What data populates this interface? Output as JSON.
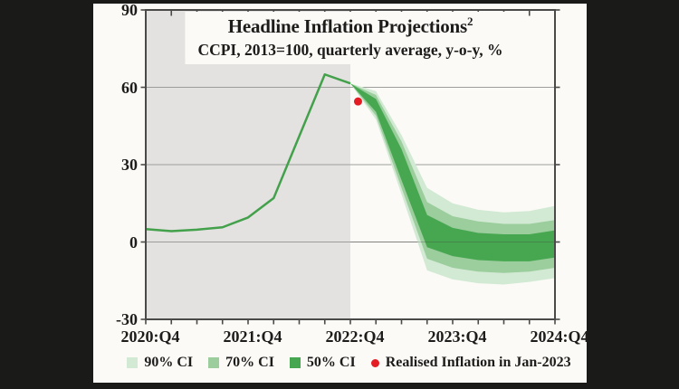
{
  "chart_data": {
    "type": "line",
    "subtype": "fan-chart-projection",
    "title": "Headline Inflation Projections",
    "title_superscript": "2",
    "subtitle": "CCPI, 2013=100, quarterly average, y-o-y, %",
    "ylim": [
      -30,
      90
    ],
    "y_tick_labels": [
      "90",
      "60",
      "30",
      "0",
      "-30"
    ],
    "y_tick_values": [
      90,
      60,
      30,
      0,
      -30
    ],
    "gridline_values": [
      60,
      30,
      0
    ],
    "x_tick_labels": [
      "2020:Q4",
      "2021:Q4",
      "2022:Q4",
      "2023:Q4",
      "2024:Q4"
    ],
    "x_tick_quarters": [
      0,
      4,
      8,
      12,
      16
    ],
    "n_quarters": 17,
    "history_shaded_through_quarter": 8,
    "history": {
      "name": "Realised headline inflation (CCPI y-o-y, quarterly average)",
      "x": [
        0,
        1,
        2,
        3,
        4,
        5,
        6,
        7,
        8
      ],
      "values": [
        5.0,
        4.2,
        4.8,
        5.7,
        9.5,
        17.0,
        41.0,
        65.0,
        61.5
      ]
    },
    "projection": {
      "x": [
        8,
        9,
        10,
        11,
        12,
        13,
        14,
        15,
        16
      ],
      "median": [
        61.5,
        53.0,
        30.0,
        4.0,
        0.0,
        -1.8,
        -2.3,
        -2.3,
        -0.8
      ],
      "ci50": {
        "upper": [
          61.5,
          55.5,
          36.0,
          10.5,
          5.5,
          3.5,
          3.0,
          3.0,
          4.5
        ],
        "lower": [
          61.5,
          50.5,
          24.0,
          -2.0,
          -5.5,
          -7.0,
          -7.5,
          -7.5,
          -6.0
        ]
      },
      "ci70": {
        "upper": [
          61.5,
          57.0,
          39.0,
          15.5,
          10.0,
          8.0,
          7.0,
          7.0,
          8.5
        ],
        "lower": [
          61.5,
          49.0,
          21.0,
          -6.5,
          -10.0,
          -11.5,
          -12.0,
          -11.5,
          -10.0
        ]
      },
      "ci90": {
        "upper": [
          61.5,
          58.5,
          41.5,
          21.0,
          15.0,
          12.5,
          11.5,
          12.0,
          14.0
        ],
        "lower": [
          61.5,
          47.5,
          18.5,
          -11.0,
          -14.5,
          -16.0,
          -16.5,
          -15.5,
          -14.0
        ]
      }
    },
    "realised_point": {
      "x_quarter": 8.3,
      "value": 54.5
    },
    "legend": [
      {
        "label": "90% CI",
        "marker": "square",
        "color": "#d2ead3"
      },
      {
        "label": "70% CI",
        "marker": "square",
        "color": "#9bcd9d"
      },
      {
        "label": "50% CI",
        "marker": "square",
        "color": "#47a750"
      },
      {
        "label": "Realised Inflation in Jan-2023",
        "marker": "dot",
        "color": "#e41d25"
      }
    ],
    "legend_position": "bottom",
    "colors": {
      "line": "#43a04b",
      "ci50": "#47a750",
      "ci70": "#9bcd9d",
      "ci90": "#d2ead3",
      "history_bg": "#e3e2e0",
      "grid": "#9d9d9b",
      "frame": "#4a4a48",
      "dot": "#e41d25",
      "text": "#1e1c1b",
      "card_bg": "#fbfaf7",
      "page_bg": "#1a1a19"
    }
  }
}
